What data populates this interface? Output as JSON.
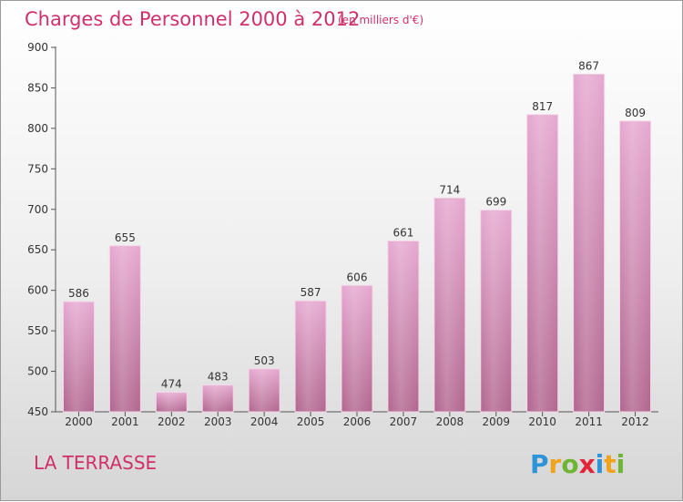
{
  "chart_data": {
    "type": "bar",
    "title": "Charges de Personnel 2000 à 2012",
    "subtitle": "(en milliers d'€)",
    "categories": [
      "2000",
      "2001",
      "2002",
      "2003",
      "2004",
      "2005",
      "2006",
      "2007",
      "2008",
      "2009",
      "2010",
      "2011",
      "2012"
    ],
    "values": [
      586,
      655,
      474,
      483,
      503,
      587,
      606,
      661,
      714,
      699,
      817,
      867,
      809
    ],
    "ylim": [
      450,
      900
    ],
    "yticks": [
      450,
      500,
      550,
      600,
      650,
      700,
      750,
      800,
      850,
      900
    ],
    "grid": false,
    "colors": {
      "bar": "#de9cc4",
      "title": "#d0306a"
    }
  },
  "footer": {
    "commune": "LA TERRASSE",
    "logo": {
      "text": "Proxiti",
      "letter_colors": [
        "#2f93d8",
        "#f1a31c",
        "#6fb534",
        "#e2263a",
        "#2f93d8",
        "#f1a31c",
        "#6fb534"
      ]
    }
  }
}
